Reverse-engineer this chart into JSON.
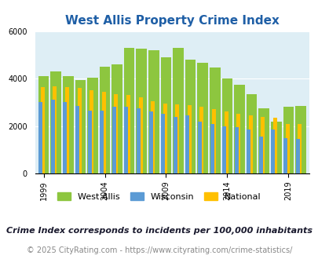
{
  "title": "West Allis Property Crime Index",
  "years": [
    1999,
    2000,
    2001,
    2002,
    2003,
    2004,
    2005,
    2006,
    2007,
    2008,
    2009,
    2010,
    2011,
    2012,
    2013,
    2014,
    2015,
    2016,
    2017,
    2018,
    2019,
    2020
  ],
  "west_allis": [
    4100,
    4300,
    4100,
    3950,
    4050,
    4500,
    4600,
    5300,
    5250,
    5200,
    4900,
    5300,
    4800,
    4650,
    4450,
    4000,
    3750,
    3350,
    2750,
    2200,
    2800,
    2850
  ],
  "wisconsin": [
    3000,
    3100,
    3000,
    2850,
    2650,
    2650,
    2800,
    2800,
    2750,
    2600,
    2500,
    2400,
    2450,
    2200,
    2100,
    2000,
    1950,
    1850,
    1550,
    1850,
    1500,
    1450
  ],
  "national": [
    3650,
    3680,
    3650,
    3600,
    3500,
    3450,
    3350,
    3300,
    3200,
    3050,
    2950,
    2900,
    2870,
    2800,
    2700,
    2600,
    2500,
    2450,
    2400,
    2350,
    2100,
    2100
  ],
  "bar_colors": {
    "west_allis": "#8dc63f",
    "wisconsin": "#5b9bd5",
    "national": "#ffc000"
  },
  "background_color": "#deeef5",
  "ylim": [
    0,
    6000
  ],
  "yticks": [
    0,
    2000,
    4000,
    6000
  ],
  "xtick_years": [
    1999,
    2004,
    2009,
    2014,
    2019
  ],
  "legend_labels": [
    "West Allis",
    "Wisconsin",
    "National"
  ],
  "note": "Crime Index corresponds to incidents per 100,000 inhabitants",
  "copyright": "© 2025 CityRating.com - https://www.cityrating.com/crime-statistics/",
  "title_color": "#1f5fa6",
  "note_color": "#1a1a2e",
  "copyright_color": "#888888",
  "title_fontsize": 11,
  "note_fontsize": 8,
  "copyright_fontsize": 7
}
